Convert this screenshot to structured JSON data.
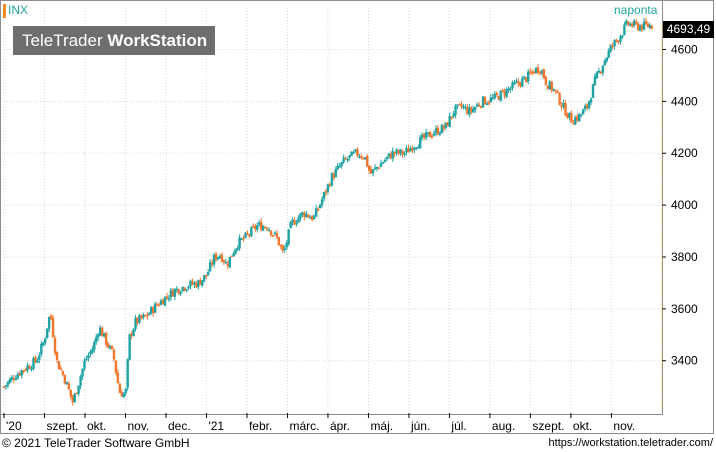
{
  "header": {
    "symbol": "INX",
    "interval": "naponta",
    "logo_light": "TeleTrader ",
    "logo_bold": "WorkStation",
    "last_price": "4693,49"
  },
  "footer": {
    "copyright": "© 2021 TeleTrader Software GmbH",
    "url": "https://workstation.teletrader.com/"
  },
  "colors": {
    "up": "#1fa3a3",
    "down": "#f2762e",
    "grid": "#d8d8d8",
    "accent": "#1fa3a3"
  },
  "chart_data": {
    "type": "candlestick",
    "ylim": [
      3210,
      4760
    ],
    "y_ticks": [
      3400,
      3600,
      3800,
      4000,
      4200,
      4400,
      4600
    ],
    "y_tick_labels": [
      "3400",
      "3600",
      "3800",
      "4000",
      "4200",
      "4400",
      "4600"
    ],
    "x_labels": [
      {
        "label": "'20",
        "month": 0
      },
      {
        "label": "szept.",
        "month": 1
      },
      {
        "label": "okt.",
        "month": 2
      },
      {
        "label": "nov.",
        "month": 3
      },
      {
        "label": "dec.",
        "month": 4
      },
      {
        "label": "'21",
        "month": 5
      },
      {
        "label": "febr.",
        "month": 6
      },
      {
        "label": "márc.",
        "month": 7
      },
      {
        "label": "ápr.",
        "month": 8
      },
      {
        "label": "máj.",
        "month": 9
      },
      {
        "label": "jún.",
        "month": 10
      },
      {
        "label": "júl.",
        "month": 11
      },
      {
        "label": "aug.",
        "month": 12
      },
      {
        "label": "szept.",
        "month": 13
      },
      {
        "label": "okt.",
        "month": 14
      },
      {
        "label": "nov.",
        "month": 15
      }
    ],
    "month_span": 16.2,
    "series_path": [
      [
        0,
        3300
      ],
      [
        0.25,
        3340
      ],
      [
        0.5,
        3370
      ],
      [
        0.8,
        3400
      ],
      [
        1.0,
        3480
      ],
      [
        1.1,
        3560
      ],
      [
        1.15,
        3580
      ],
      [
        1.3,
        3400
      ],
      [
        1.5,
        3330
      ],
      [
        1.7,
        3240
      ],
      [
        1.85,
        3320
      ],
      [
        2.0,
        3400
      ],
      [
        2.2,
        3450
      ],
      [
        2.35,
        3530
      ],
      [
        2.5,
        3480
      ],
      [
        2.7,
        3420
      ],
      [
        2.85,
        3280
      ],
      [
        3.0,
        3270
      ],
      [
        3.1,
        3490
      ],
      [
        3.25,
        3550
      ],
      [
        3.5,
        3570
      ],
      [
        3.8,
        3620
      ],
      [
        4.2,
        3670
      ],
      [
        4.5,
        3690
      ],
      [
        4.8,
        3700
      ],
      [
        5.0,
        3730
      ],
      [
        5.2,
        3800
      ],
      [
        5.35,
        3810
      ],
      [
        5.5,
        3770
      ],
      [
        5.75,
        3850
      ],
      [
        6.0,
        3880
      ],
      [
        6.25,
        3920
      ],
      [
        6.5,
        3920
      ],
      [
        6.75,
        3870
      ],
      [
        6.9,
        3810
      ],
      [
        7.1,
        3930
      ],
      [
        7.4,
        3970
      ],
      [
        7.65,
        3950
      ],
      [
        7.85,
        4020
      ],
      [
        8.1,
        4110
      ],
      [
        8.4,
        4170
      ],
      [
        8.7,
        4200
      ],
      [
        8.9,
        4190
      ],
      [
        9.05,
        4120
      ],
      [
        9.3,
        4160
      ],
      [
        9.6,
        4200
      ],
      [
        9.9,
        4200
      ],
      [
        10.1,
        4230
      ],
      [
        10.3,
        4250
      ],
      [
        10.6,
        4280
      ],
      [
        10.9,
        4300
      ],
      [
        11.1,
        4360
      ],
      [
        11.3,
        4380
      ],
      [
        11.5,
        4360
      ],
      [
        11.8,
        4400
      ],
      [
        12.1,
        4410
      ],
      [
        12.4,
        4440
      ],
      [
        12.7,
        4470
      ],
      [
        12.9,
        4490
      ],
      [
        13.1,
        4520
      ],
      [
        13.25,
        4530
      ],
      [
        13.4,
        4470
      ],
      [
        13.6,
        4440
      ],
      [
        13.8,
        4380
      ],
      [
        14.0,
        4330
      ],
      [
        14.2,
        4340
      ],
      [
        14.4,
        4380
      ],
      [
        14.6,
        4480
      ],
      [
        14.8,
        4550
      ],
      [
        15.0,
        4610
      ],
      [
        15.2,
        4650
      ],
      [
        15.4,
        4700
      ],
      [
        15.6,
        4690
      ],
      [
        15.8,
        4690
      ],
      [
        16.0,
        4693
      ]
    ],
    "last_value": 4693.49
  }
}
